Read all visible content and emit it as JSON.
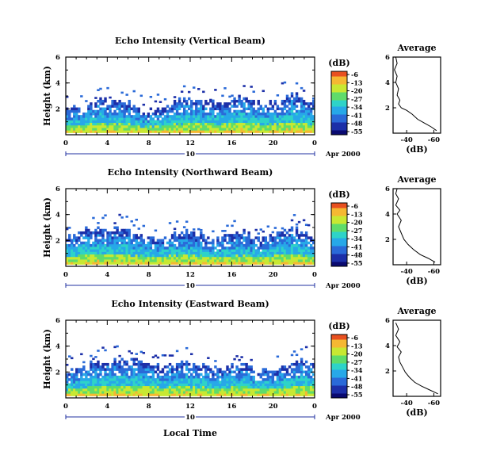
{
  "chart_data": [
    {
      "type": "heatmap",
      "title": "Echo Intensity (Vertical Beam)",
      "ylabel": "Height (km)",
      "ylim": [
        0,
        6
      ],
      "y_ticks": [
        "6",
        "4",
        "2"
      ],
      "x_ticks": [
        "0",
        "4",
        "8",
        "12",
        "16",
        "20",
        "0"
      ],
      "xlim": [
        0,
        24
      ],
      "date_day": "10",
      "date_month_year": "Apr 2000",
      "colorbar_unit": "(dB)",
      "colorbar_ticks": [
        "-6",
        "-13",
        "-20",
        "-27",
        "-34",
        "-41",
        "-48",
        "-55"
      ],
      "echo_top_km": [
        2.0,
        2.1,
        2.3,
        2.6,
        2.5,
        2.7,
        2.3,
        1.9,
        1.8,
        2.1,
        2.4,
        2.7,
        2.6,
        2.4,
        2.2,
        2.5,
        2.8,
        2.6,
        2.3,
        2.4,
        2.8,
        3.0,
        2.6,
        2.3
      ],
      "profile": {
        "title": "Average",
        "xlabel": "(dB)",
        "x_ticks": [
          "-40",
          "-60"
        ],
        "xlim": [
          -30,
          -65
        ],
        "ylim": [
          0,
          6
        ],
        "y_ticks": [
          "6",
          "4",
          "2"
        ],
        "points": [
          [
            -62,
            0.2
          ],
          [
            -58,
            0.5
          ],
          [
            -53,
            0.8
          ],
          [
            -48,
            1.1
          ],
          [
            -44,
            1.5
          ],
          [
            -40,
            1.8
          ],
          [
            -36,
            2.0
          ],
          [
            -34,
            2.3
          ],
          [
            -35,
            2.6
          ],
          [
            -33,
            3.0
          ],
          [
            -34,
            3.5
          ],
          [
            -32,
            4.0
          ],
          [
            -33,
            4.5
          ],
          [
            -31,
            5.0
          ],
          [
            -33,
            5.5
          ],
          [
            -32,
            6.0
          ]
        ]
      }
    },
    {
      "type": "heatmap",
      "title": "Echo Intensity (Northward Beam)",
      "ylabel": "Height (km)",
      "ylim": [
        0,
        6
      ],
      "y_ticks": [
        "6",
        "4",
        "2"
      ],
      "x_ticks": [
        "0",
        "4",
        "8",
        "12",
        "16",
        "20",
        "0"
      ],
      "xlim": [
        0,
        24
      ],
      "date_day": "10",
      "date_month_year": "Apr 2000",
      "colorbar_unit": "(dB)",
      "colorbar_ticks": [
        "-6",
        "-13",
        "-20",
        "-27",
        "-34",
        "-41",
        "-48",
        "-55"
      ],
      "echo_top_km": [
        2.2,
        2.4,
        2.8,
        3.0,
        2.7,
        2.9,
        2.6,
        2.3,
        2.1,
        2.2,
        2.5,
        2.7,
        2.4,
        2.2,
        2.0,
        2.3,
        2.6,
        2.3,
        2.1,
        2.3,
        2.6,
        2.9,
        2.5,
        2.2
      ],
      "profile": {
        "title": "Average",
        "xlabel": "(dB)",
        "x_ticks": [
          "-40",
          "-60"
        ],
        "xlim": [
          -30,
          -65
        ],
        "ylim": [
          0,
          6
        ],
        "y_ticks": [
          "6",
          "4",
          "2"
        ],
        "points": [
          [
            -61,
            0.2
          ],
          [
            -56,
            0.5
          ],
          [
            -50,
            0.8
          ],
          [
            -45,
            1.2
          ],
          [
            -41,
            1.6
          ],
          [
            -38,
            2.0
          ],
          [
            -36,
            2.5
          ],
          [
            -34,
            3.0
          ],
          [
            -36,
            3.5
          ],
          [
            -33,
            4.0
          ],
          [
            -35,
            4.3
          ],
          [
            -32,
            4.7
          ],
          [
            -34,
            5.2
          ],
          [
            -32,
            5.6
          ],
          [
            -33,
            6.0
          ]
        ]
      }
    },
    {
      "type": "heatmap",
      "title": "Echo Intensity (Eastward Beam)",
      "ylabel": "Height (km)",
      "ylim": [
        0,
        6
      ],
      "y_ticks": [
        "6",
        "4",
        "2"
      ],
      "x_ticks": [
        "0",
        "4",
        "8",
        "12",
        "16",
        "20",
        "0"
      ],
      "xlim": [
        0,
        24
      ],
      "date_day": "10",
      "date_month_year": "Apr 2000",
      "xlabel": "Local Time",
      "colorbar_unit": "(dB)",
      "colorbar_ticks": [
        "-6",
        "-13",
        "-20",
        "-27",
        "-34",
        "-41",
        "-48",
        "-55"
      ],
      "echo_top_km": [
        2.0,
        2.2,
        2.5,
        2.7,
        2.8,
        2.9,
        3.0,
        2.9,
        2.6,
        2.4,
        2.6,
        2.7,
        2.5,
        2.3,
        2.1,
        2.4,
        2.5,
        2.2,
        2.1,
        2.2,
        2.3,
        2.7,
        2.9,
        2.6
      ],
      "profile": {
        "title": "Average",
        "xlabel": "(dB)",
        "x_ticks": [
          "-40",
          "-60"
        ],
        "xlim": [
          -30,
          -65
        ],
        "ylim": [
          0,
          6
        ],
        "y_ticks": [
          "6",
          "4",
          "2"
        ],
        "points": [
          [
            -63,
            0.2
          ],
          [
            -57,
            0.5
          ],
          [
            -51,
            0.8
          ],
          [
            -46,
            1.1
          ],
          [
            -42,
            1.5
          ],
          [
            -39,
            1.9
          ],
          [
            -37,
            2.3
          ],
          [
            -35,
            2.7
          ],
          [
            -34,
            3.1
          ],
          [
            -36,
            3.5
          ],
          [
            -33,
            3.9
          ],
          [
            -35,
            4.3
          ],
          [
            -32,
            4.8
          ],
          [
            -34,
            5.3
          ],
          [
            -32,
            5.8
          ]
        ]
      }
    }
  ],
  "colors": {
    "colormap": [
      "#0a0a70",
      "#1c2fa8",
      "#2a6ad8",
      "#27a8e8",
      "#2ed3c8",
      "#5fdc6a",
      "#c8e832",
      "#f5b832",
      "#e85020"
    ],
    "date_line": "#2030a0"
  }
}
